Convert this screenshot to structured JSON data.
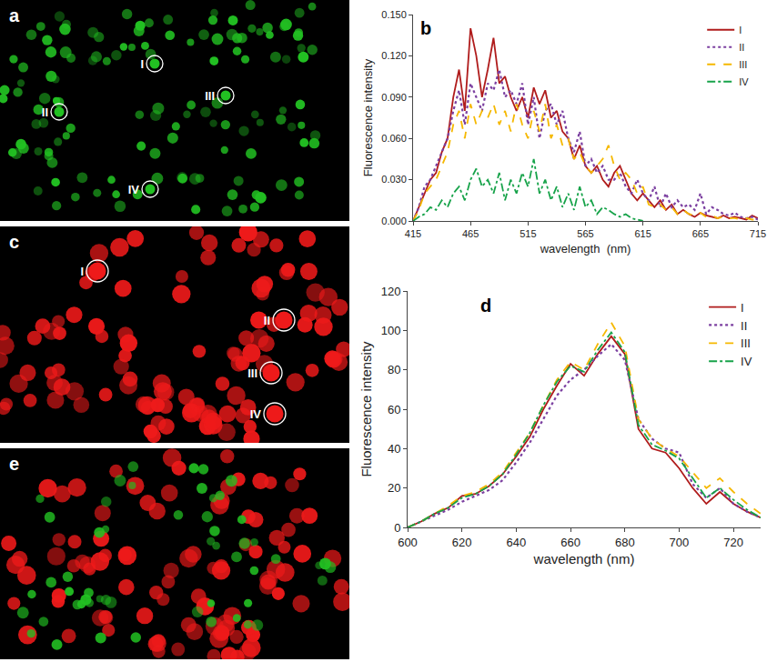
{
  "images": [
    {
      "letter": "a",
      "labels": [
        "I",
        "II",
        "III",
        "IV"
      ],
      "color": "#22c022"
    },
    {
      "letter": "c",
      "labels": [
        "I",
        "II",
        "III",
        "IV"
      ],
      "color": "#ee1a1a"
    },
    {
      "letter": "e",
      "labels": []
    }
  ],
  "chart_data": [
    {
      "type": "line",
      "annotations": [
        "b"
      ],
      "x_label": "wavelength  (nm)",
      "y_label": "Fluorescence intensity",
      "x": [
        415,
        420,
        425,
        430,
        435,
        440,
        445,
        450,
        455,
        460,
        465,
        470,
        475,
        480,
        485,
        490,
        495,
        500,
        505,
        510,
        515,
        520,
        525,
        530,
        535,
        540,
        545,
        550,
        555,
        560,
        565,
        570,
        575,
        580,
        585,
        590,
        595,
        600,
        605,
        610,
        615,
        620,
        625,
        630,
        635,
        640,
        645,
        650,
        655,
        660,
        665,
        670,
        675,
        680,
        685,
        690,
        695,
        700,
        705,
        710,
        715
      ],
      "xlim": [
        415,
        715
      ],
      "xticks": [
        415,
        465,
        515,
        565,
        615,
        665,
        715
      ],
      "ylim": [
        0,
        0.15
      ],
      "yticks": [
        {
          "value": 0,
          "label": "0.000"
        },
        {
          "value": 0.03,
          "label": "0.030"
        },
        {
          "value": 0.06,
          "label": "0.060"
        },
        {
          "value": 0.09,
          "label": "0.090"
        },
        {
          "value": 0.12,
          "label": "0.120"
        },
        {
          "value": 0.15,
          "label": "0.150"
        }
      ],
      "grid": false,
      "legend": "top-right",
      "series": [
        {
          "name": "I",
          "color": "#b01c1c",
          "line_style": "solid",
          "values": [
            0,
            0.01,
            0.02,
            0.03,
            0.035,
            0.05,
            0.06,
            0.09,
            0.11,
            0.08,
            0.14,
            0.12,
            0.09,
            0.11,
            0.133,
            0.1,
            0.105,
            0.09,
            0.08,
            0.09,
            0.075,
            0.097,
            0.085,
            0.095,
            0.075,
            0.08,
            0.065,
            0.06,
            0.045,
            0.055,
            0.04,
            0.035,
            0.04,
            0.03,
            0.025,
            0.035,
            0.04,
            0.03,
            0.02,
            0.015,
            0.02,
            0.015,
            0.01,
            0.015,
            0.008,
            0.012,
            0.005,
            0.008,
            0.005,
            0.003,
            0.006,
            0.004,
            0.003,
            0.002,
            0.004,
            0.002,
            0.003,
            0.002,
            0.001,
            0.004,
            0.002
          ]
        },
        {
          "name": "II",
          "color": "#7b3fa0",
          "line_style": "dot",
          "values": [
            0,
            0.01,
            0.025,
            0.03,
            0.04,
            0.05,
            0.06,
            0.08,
            0.095,
            0.07,
            0.1,
            0.09,
            0.08,
            0.1,
            0.095,
            0.11,
            0.09,
            0.095,
            0.085,
            0.1,
            0.07,
            0.09,
            0.06,
            0.08,
            0.085,
            0.07,
            0.08,
            0.06,
            0.05,
            0.065,
            0.04,
            0.045,
            0.035,
            0.04,
            0.03,
            0.03,
            0.035,
            0.025,
            0.02,
            0.03,
            0.02,
            0.015,
            0.025,
            0.01,
            0.02,
            0.01,
            0.015,
            0.01,
            0.012,
            0.008,
            0.02,
            0.005,
            0.01,
            0.008,
            0.005,
            0.004,
            0.006,
            0.003,
            0.002,
            0.003,
            0.001
          ]
        },
        {
          "name": "III",
          "color": "#f5b800",
          "line_style": "dash",
          "values": [
            0,
            0.008,
            0.02,
            0.025,
            0.03,
            0.04,
            0.05,
            0.07,
            0.08,
            0.06,
            0.085,
            0.07,
            0.08,
            0.075,
            0.085,
            0.07,
            0.08,
            0.065,
            0.085,
            0.07,
            0.06,
            0.08,
            0.065,
            0.085,
            0.06,
            0.07,
            0.055,
            0.06,
            0.045,
            0.05,
            0.04,
            0.035,
            0.04,
            0.045,
            0.055,
            0.04,
            0.03,
            0.035,
            0.03,
            0.02,
            0.025,
            0.012,
            0.01,
            0.012,
            0.008,
            0.01,
            0.005,
            0.008,
            0.005,
            0.004,
            0.006,
            0.003,
            0.004,
            0.002,
            0.003,
            0.002,
            0.002,
            0.001,
            0.002,
            0.001,
            0.001
          ]
        },
        {
          "name": "IV",
          "color": "#17a34a",
          "line_style": "dashdot",
          "values": [
            0,
            0.003,
            0.005,
            0.01,
            0.008,
            0.015,
            0.01,
            0.02,
            0.025,
            0.015,
            0.03,
            0.038,
            0.025,
            0.03,
            0.02,
            0.035,
            0.015,
            0.03,
            0.02,
            0.035,
            0.025,
            0.045,
            0.02,
            0.03,
            0.015,
            0.025,
            0.01,
            0.02,
            0.008,
            0.025,
            0.01,
            0.015,
            0.005,
            0.01,
            0.008,
            0.005,
            0.003,
            0.005,
            0.002,
            0.001,
            0,
            null,
            null,
            null,
            null,
            null,
            null,
            null,
            null,
            null,
            null,
            null,
            null,
            null,
            null,
            null,
            null,
            null,
            null,
            null,
            null
          ]
        }
      ]
    },
    {
      "type": "line",
      "annotations": [
        "d"
      ],
      "x_label": "wavelength (nm)",
      "y_label": "Fluorescence intensity",
      "x": [
        600,
        605,
        610,
        615,
        620,
        625,
        630,
        635,
        640,
        645,
        650,
        655,
        660,
        665,
        670,
        675,
        680,
        685,
        690,
        695,
        700,
        705,
        710,
        715,
        720,
        725,
        730
      ],
      "xlim": [
        600,
        730
      ],
      "xticks": [
        600,
        620,
        640,
        660,
        680,
        700,
        720
      ],
      "ylim": [
        0,
        120
      ],
      "yticks": [
        0,
        20,
        40,
        60,
        80,
        100,
        120
      ],
      "grid": false,
      "legend": "top-right",
      "series": [
        {
          "name": "I",
          "color": "#b01c1c",
          "line_style": "solid",
          "values": [
            0,
            3,
            7,
            10,
            16,
            17,
            21,
            27,
            36,
            46,
            60,
            72,
            83,
            77,
            88,
            97,
            88,
            50,
            40,
            38,
            30,
            20,
            12,
            18,
            12,
            8,
            5
          ]
        },
        {
          "name": "II",
          "color": "#7b3fa0",
          "line_style": "dot",
          "values": [
            0,
            3,
            6,
            9,
            13,
            16,
            19,
            24,
            33,
            43,
            55,
            67,
            75,
            80,
            87,
            93,
            85,
            55,
            45,
            40,
            38,
            22,
            15,
            20,
            12,
            8,
            5
          ]
        },
        {
          "name": "III",
          "color": "#f5b800",
          "line_style": "dash",
          "values": [
            0,
            3,
            7,
            11,
            16,
            18,
            22,
            28,
            38,
            48,
            62,
            75,
            84,
            80,
            93,
            104,
            92,
            55,
            45,
            40,
            36,
            28,
            20,
            25,
            18,
            12,
            7
          ]
        },
        {
          "name": "IV",
          "color": "#17a34a",
          "line_style": "dashdot",
          "values": [
            0,
            3,
            7,
            10,
            15,
            17,
            21,
            27,
            37,
            48,
            62,
            74,
            82,
            79,
            90,
            99,
            89,
            52,
            42,
            39,
            35,
            25,
            15,
            20,
            14,
            9,
            5
          ]
        }
      ]
    }
  ]
}
